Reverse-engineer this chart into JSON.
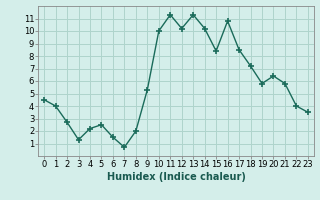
{
  "x": [
    0,
    1,
    2,
    3,
    4,
    5,
    6,
    7,
    8,
    9,
    10,
    11,
    12,
    13,
    14,
    15,
    16,
    17,
    18,
    19,
    20,
    21,
    22,
    23
  ],
  "y": [
    4.5,
    4.0,
    2.7,
    1.3,
    2.2,
    2.5,
    1.5,
    0.7,
    2.0,
    5.3,
    10.0,
    11.3,
    10.2,
    11.3,
    10.2,
    8.4,
    10.8,
    8.5,
    7.2,
    5.8,
    6.4,
    5.8,
    4.0,
    3.5
  ],
  "line_color": "#1a6b5a",
  "marker": "+",
  "marker_size": 4,
  "marker_linewidth": 1.2,
  "xlabel": "Humidex (Indice chaleur)",
  "xlabel_fontsize": 7,
  "ylabel": "",
  "xlim": [
    -0.5,
    23.5
  ],
  "ylim": [
    0,
    12
  ],
  "xticks": [
    0,
    1,
    2,
    3,
    4,
    5,
    6,
    7,
    8,
    9,
    10,
    11,
    12,
    13,
    14,
    15,
    16,
    17,
    18,
    19,
    20,
    21,
    22,
    23
  ],
  "yticks": [
    1,
    2,
    3,
    4,
    5,
    6,
    7,
    8,
    9,
    10,
    11
  ],
  "grid_color": "#aed4cc",
  "background_color": "#d4eeea",
  "tick_fontsize": 6,
  "line_width": 1.0
}
